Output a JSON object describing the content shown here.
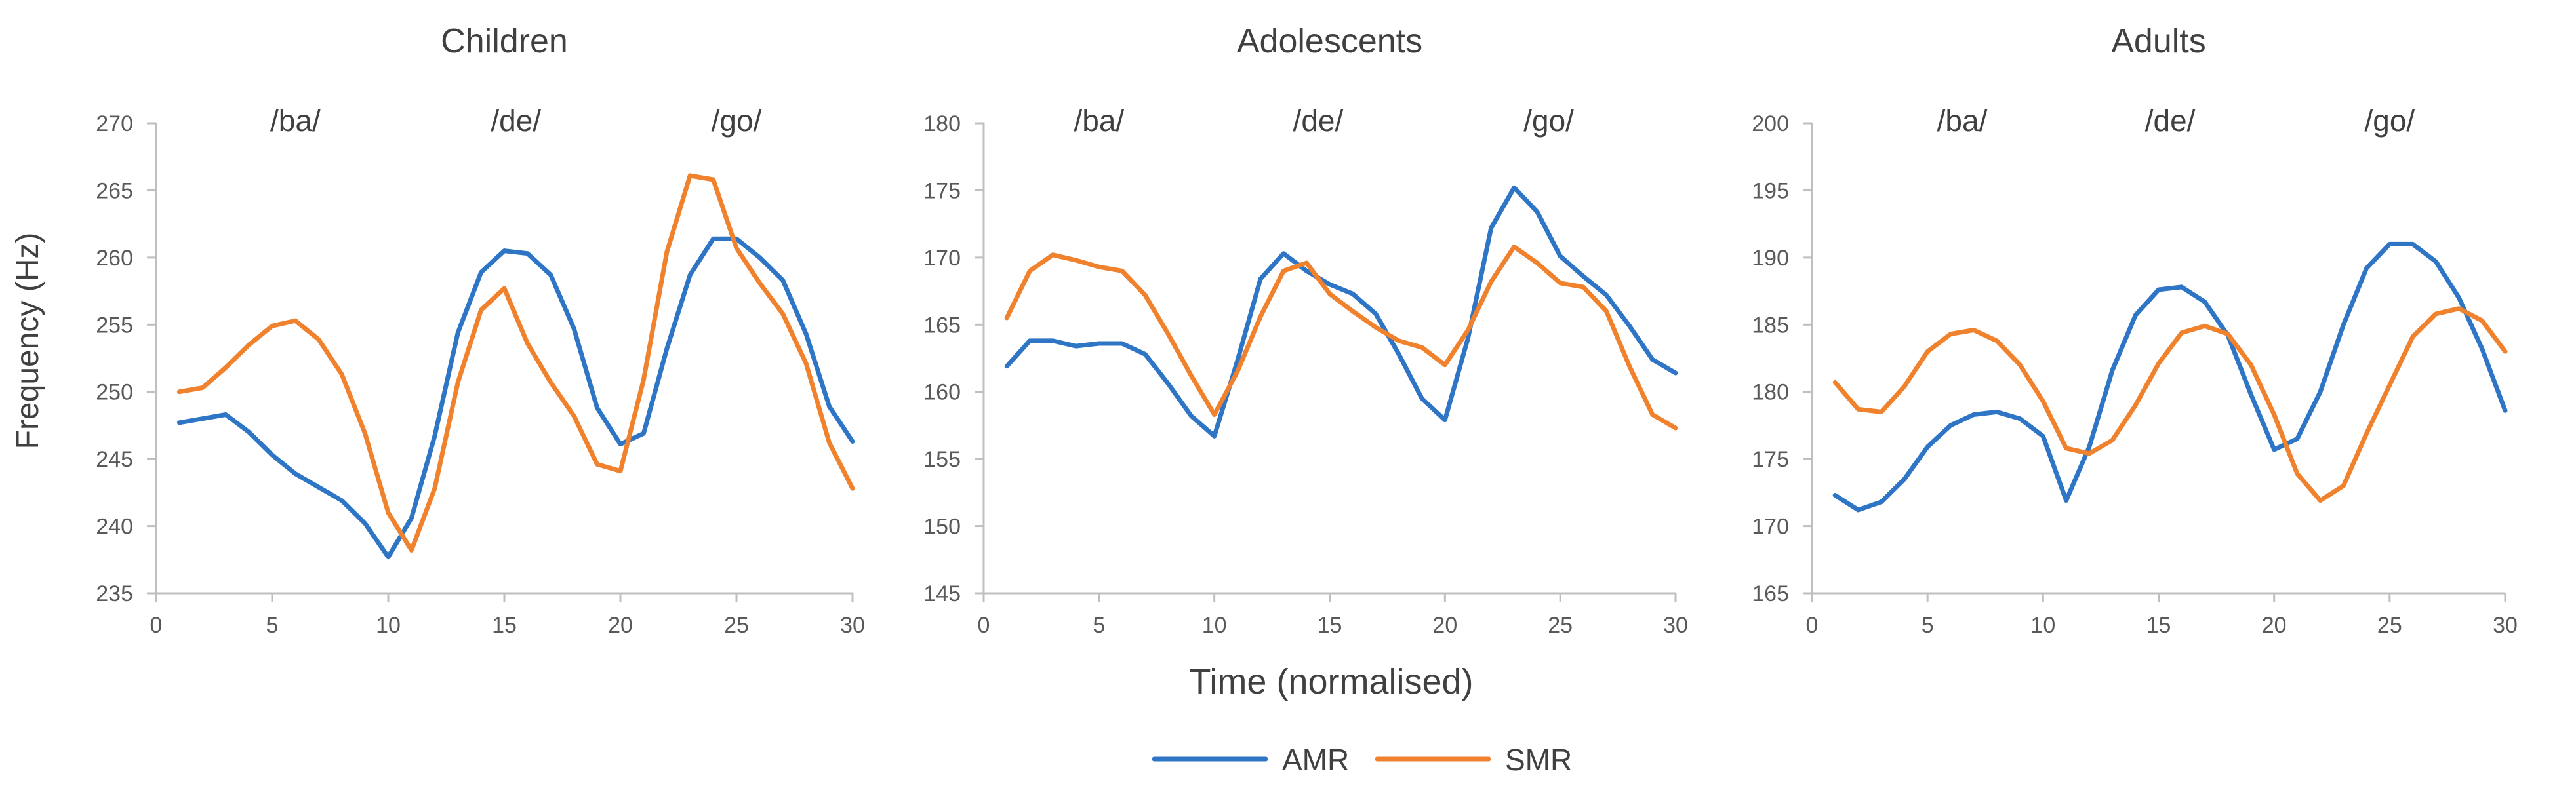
{
  "figure": {
    "ylabel": "Frequency (Hz)",
    "xlabel": "Time (normalised)",
    "legend": [
      {
        "name": "AMR",
        "color": "#2E75C6"
      },
      {
        "name": "SMR",
        "color": "#F0812D"
      }
    ],
    "legend_placement": "bottom-center"
  },
  "chart_data": [
    {
      "type": "line",
      "title": "Children",
      "xlabel": "Time (normalised)",
      "ylabel": "Frequency (Hz)",
      "xlim": [
        0,
        30
      ],
      "xticks": [
        0,
        5,
        10,
        15,
        20,
        25,
        30
      ],
      "ylim": [
        235,
        270
      ],
      "yticks": [
        235,
        240,
        245,
        250,
        255,
        260,
        265,
        270
      ],
      "annotations": [
        {
          "text": "/ba/",
          "x": 6
        },
        {
          "text": "/de/",
          "x": 15.5
        },
        {
          "text": "/go/",
          "x": 25
        }
      ],
      "x": [
        1,
        2,
        3,
        4,
        5,
        6,
        7,
        8,
        9,
        10,
        11,
        12,
        13,
        14,
        15,
        16,
        17,
        18,
        19,
        20,
        21,
        22,
        23,
        24,
        25,
        26,
        27,
        28,
        29,
        30
      ],
      "series": [
        {
          "name": "AMR",
          "color": "#2E75C6",
          "values": [
            247.7,
            248.0,
            248.3,
            247.0,
            245.3,
            243.9,
            242.9,
            241.9,
            240.2,
            237.7,
            240.6,
            246.7,
            254.4,
            258.9,
            260.5,
            260.3,
            258.7,
            254.7,
            248.8,
            246.1,
            246.9,
            253.2,
            258.7,
            261.4,
            261.4,
            260.0,
            258.3,
            254.3,
            248.9,
            246.3
          ]
        },
        {
          "name": "SMR",
          "color": "#F0812D",
          "values": [
            250.0,
            250.3,
            251.8,
            253.5,
            254.9,
            255.3,
            253.9,
            251.3,
            246.9,
            241.0,
            238.2,
            242.8,
            250.7,
            256.1,
            257.7,
            253.6,
            250.7,
            248.2,
            244.6,
            244.1,
            250.9,
            260.4,
            266.1,
            265.8,
            260.7,
            258.1,
            255.8,
            252.1,
            246.2,
            242.8
          ]
        }
      ]
    },
    {
      "type": "line",
      "title": "Adolescents",
      "xlabel": "Time (normalised)",
      "ylabel": "Frequency (Hz)",
      "xlim": [
        0,
        30
      ],
      "xticks": [
        0,
        5,
        10,
        15,
        20,
        25,
        30
      ],
      "ylim": [
        145,
        180
      ],
      "yticks": [
        145,
        150,
        155,
        160,
        165,
        170,
        175,
        180
      ],
      "annotations": [
        {
          "text": "/ba/",
          "x": 5
        },
        {
          "text": "/de/",
          "x": 14.5
        },
        {
          "text": "/go/",
          "x": 24.5
        }
      ],
      "x": [
        1,
        2,
        3,
        4,
        5,
        6,
        7,
        8,
        9,
        10,
        11,
        12,
        13,
        14,
        15,
        16,
        17,
        18,
        19,
        20,
        21,
        22,
        23,
        24,
        25,
        26,
        27,
        28,
        29,
        30
      ],
      "series": [
        {
          "name": "AMR",
          "color": "#2E75C6",
          "values": [
            161.9,
            163.8,
            163.8,
            163.4,
            163.6,
            163.6,
            162.8,
            160.6,
            158.2,
            156.7,
            162.3,
            168.4,
            170.3,
            169.0,
            168.0,
            167.3,
            165.8,
            162.8,
            159.5,
            157.9,
            164.0,
            172.2,
            175.2,
            173.4,
            170.1,
            168.6,
            167.2,
            164.9,
            162.4,
            161.4
          ]
        },
        {
          "name": "SMR",
          "color": "#F0812D",
          "values": [
            165.5,
            169.0,
            170.2,
            169.8,
            169.3,
            169.0,
            167.2,
            164.3,
            161.2,
            158.3,
            161.5,
            165.6,
            169.0,
            169.6,
            167.3,
            166.0,
            164.8,
            163.8,
            163.3,
            162.0,
            164.6,
            168.2,
            170.8,
            169.6,
            168.1,
            167.8,
            166.0,
            161.9,
            158.3,
            157.3
          ]
        }
      ]
    },
    {
      "type": "line",
      "title": "Adults",
      "xlabel": "Time (normalised)",
      "ylabel": "Frequency (Hz)",
      "xlim": [
        0,
        30
      ],
      "xticks": [
        0,
        5,
        10,
        15,
        20,
        25,
        30
      ],
      "ylim": [
        165,
        200
      ],
      "yticks": [
        165,
        170,
        175,
        180,
        185,
        190,
        195,
        200
      ],
      "annotations": [
        {
          "text": "/ba/",
          "x": 6.5
        },
        {
          "text": "/de/",
          "x": 15.5
        },
        {
          "text": "/go/",
          "x": 25
        }
      ],
      "x": [
        1,
        2,
        3,
        4,
        5,
        6,
        7,
        8,
        9,
        10,
        11,
        12,
        13,
        14,
        15,
        16,
        17,
        18,
        19,
        20,
        21,
        22,
        23,
        24,
        25,
        26,
        27,
        28,
        29,
        30
      ],
      "series": [
        {
          "name": "AMR",
          "color": "#2E75C6",
          "values": [
            172.3,
            171.2,
            171.8,
            173.5,
            175.9,
            177.5,
            178.3,
            178.5,
            178.0,
            176.7,
            171.9,
            175.9,
            181.6,
            185.7,
            187.6,
            187.8,
            186.7,
            184.2,
            179.8,
            175.7,
            176.5,
            180.0,
            185.0,
            189.2,
            191.0,
            191.0,
            189.7,
            187.0,
            183.2,
            178.6
          ]
        },
        {
          "name": "SMR",
          "color": "#F0812D",
          "values": [
            180.7,
            178.7,
            178.5,
            180.4,
            183.0,
            184.3,
            184.6,
            183.8,
            182.0,
            179.3,
            175.8,
            175.4,
            176.4,
            179.0,
            182.1,
            184.4,
            184.9,
            184.3,
            182.0,
            178.3,
            173.9,
            171.9,
            173.0,
            176.9,
            180.5,
            184.1,
            185.8,
            186.2,
            185.3,
            183.0
          ]
        }
      ]
    }
  ]
}
